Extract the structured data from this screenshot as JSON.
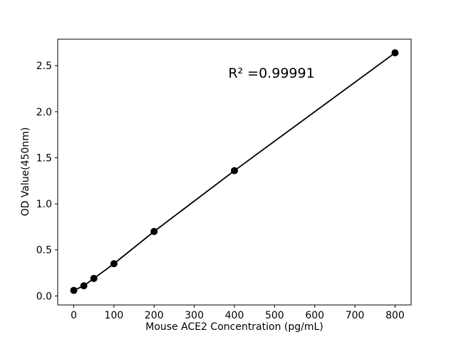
{
  "figure": {
    "background": "#ffffff"
  },
  "chart_data": {
    "type": "line",
    "series_name": "standard-curve",
    "x": [
      0,
      25,
      50,
      100,
      200,
      400,
      800
    ],
    "y": [
      0.06,
      0.11,
      0.19,
      0.35,
      0.7,
      1.36,
      2.64
    ],
    "title": "",
    "xlabel": "Mouse ACE2 Concentration (pg/mL)",
    "ylabel": "OD Value(450nm)",
    "annotation": {
      "text": "R² =0.99991"
    },
    "xlim": [
      -40,
      840
    ],
    "ylim": [
      -0.098,
      2.788
    ],
    "xticks": {
      "values": [
        0,
        100,
        200,
        300,
        400,
        500,
        600,
        700,
        800
      ],
      "labels": [
        "0",
        "100",
        "200",
        "300",
        "400",
        "500",
        "600",
        "700",
        "800"
      ]
    },
    "yticks": {
      "values": [
        0,
        0.5,
        1.0,
        1.5,
        2.0,
        2.5
      ],
      "labels": [
        "0.0",
        "0.5",
        "1.0",
        "1.5",
        "2.0",
        "2.5"
      ]
    },
    "grid": false,
    "legend": "none",
    "marker": "circle",
    "marker_color": "#000000",
    "line_color": "#000000",
    "axis_color": "#000000"
  }
}
